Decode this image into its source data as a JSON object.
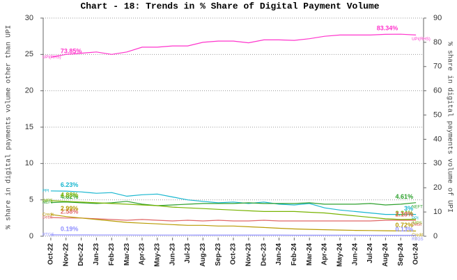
{
  "chart_data": {
    "type": "line",
    "title": "Chart - 18: Trends in % Share of Digital Payment Volume",
    "y_label": "% share in digital payments volume other than UPI",
    "y2_label": "% share in digital payments volume of UPI",
    "categories": [
      "Oct-22",
      "Nov-22",
      "Dec-22",
      "Jan-23",
      "Feb-23",
      "Mar-23",
      "Apr-23",
      "May-23",
      "Jun-23",
      "Jul-23",
      "Aug-23",
      "Sep-23",
      "Oct-23",
      "Nov-23",
      "Dec-23",
      "Jan-24",
      "Feb-24",
      "Mar-24",
      "Apr-24",
      "May-24",
      "Jun-24",
      "Jul-24",
      "Aug-24",
      "Sep-24",
      "Oct-24"
    ],
    "ylim": [
      0,
      30
    ],
    "yticks": [
      0,
      5,
      10,
      15,
      20,
      25,
      30
    ],
    "y2lim": [
      0,
      90
    ],
    "y2ticks": [
      0,
      10,
      20,
      30,
      40,
      50,
      60,
      70,
      80,
      90
    ],
    "grid": true,
    "series": [
      {
        "name": "UPI(RHS)",
        "color": "#ff33cc",
        "axis": "y2",
        "values": [
          73.85,
          75,
          75.5,
          76,
          75,
          76,
          78,
          78,
          78.5,
          78.5,
          80,
          80.5,
          80.5,
          79.8,
          81,
          81,
          80.8,
          81.5,
          82.5,
          83,
          83,
          83,
          83.3,
          83.34,
          83
        ],
        "value_labels": [
          "73.85%",
          null,
          null,
          null,
          null,
          null,
          null,
          null,
          null,
          null,
          null,
          null,
          null,
          null,
          null,
          null,
          null,
          null,
          null,
          null,
          null,
          null,
          null,
          "83.34%",
          null
        ]
      },
      {
        "name": "PPI",
        "color": "#17b6cf",
        "values": [
          6.23,
          6.2,
          6.1,
          5.9,
          6.0,
          5.5,
          5.7,
          5.8,
          5.4,
          5.0,
          4.8,
          4.6,
          4.7,
          4.5,
          4.7,
          4.4,
          4.3,
          4.5,
          3.9,
          3.6,
          3.4,
          3.2,
          3.0,
          3.0,
          3
        ],
        "value_labels": [
          "6.23%",
          null,
          null,
          null,
          null,
          null,
          null,
          null,
          null,
          null,
          null,
          null,
          null,
          null,
          null,
          null,
          null,
          null,
          null,
          null,
          null,
          null,
          null,
          null,
          "3%"
        ]
      },
      {
        "name": "NEFT",
        "color": "#2ca02c",
        "values": [
          4.62,
          4.7,
          4.6,
          4.5,
          4.6,
          4.8,
          4.4,
          4.2,
          4.3,
          4.4,
          4.5,
          4.5,
          4.5,
          4.6,
          4.5,
          4.5,
          4.5,
          4.6,
          4.4,
          4.4,
          4.4,
          4.5,
          4.3,
          4.4,
          4.61
        ],
        "value_labels": [
          "4.62%",
          null,
          null,
          null,
          null,
          null,
          null,
          null,
          null,
          null,
          null,
          null,
          null,
          null,
          null,
          null,
          null,
          null,
          null,
          null,
          null,
          null,
          null,
          null,
          "4.61%"
        ]
      },
      {
        "name": "IMPS",
        "color": "#77b300",
        "values": [
          4.88,
          4.8,
          4.7,
          4.6,
          4.5,
          4.4,
          4.3,
          4.2,
          4.0,
          3.9,
          3.8,
          3.7,
          3.6,
          3.5,
          3.4,
          3.4,
          3.4,
          3.3,
          3.2,
          3.0,
          2.8,
          2.6,
          2.4,
          2.3,
          2.34
        ],
        "value_labels": [
          "4.88%",
          null,
          null,
          null,
          null,
          null,
          null,
          null,
          null,
          null,
          null,
          null,
          null,
          null,
          null,
          null,
          null,
          null,
          null,
          null,
          null,
          null,
          null,
          null,
          "2.34%"
        ]
      },
      {
        "name": "Debit",
        "color": "#e06666",
        "values": [
          2.58,
          2.5,
          2.5,
          2.4,
          2.3,
          2.2,
          2.3,
          2.2,
          2.1,
          2.2,
          2.1,
          2.2,
          2.1,
          2.1,
          2.2,
          2.1,
          2.1,
          2.1,
          2.1,
          2.1,
          2.1,
          2.1,
          2.2,
          2.2,
          2.18
        ],
        "value_labels": [
          "2.58%",
          null,
          null,
          null,
          null,
          null,
          null,
          null,
          null,
          null,
          null,
          null,
          null,
          null,
          null,
          null,
          null,
          null,
          null,
          null,
          null,
          null,
          null,
          null,
          "2.18%"
        ]
      },
      {
        "name": "Credit",
        "color": "#b89a00",
        "values": [
          2.99,
          2.7,
          2.5,
          2.3,
          2.1,
          1.9,
          1.8,
          1.7,
          1.6,
          1.5,
          1.5,
          1.4,
          1.4,
          1.3,
          1.2,
          1.1,
          1.0,
          0.95,
          0.9,
          0.85,
          0.8,
          0.78,
          0.75,
          0.73,
          0.72
        ],
        "value_labels": [
          "2.99%",
          null,
          null,
          null,
          null,
          null,
          null,
          null,
          null,
          null,
          null,
          null,
          null,
          null,
          null,
          null,
          null,
          null,
          null,
          null,
          null,
          null,
          null,
          null,
          "0.72%"
        ]
      },
      {
        "name": "RTGS",
        "color": "#8f8fff",
        "values": [
          0.19,
          0.18,
          0.18,
          0.17,
          0.17,
          0.17,
          0.16,
          0.16,
          0.16,
          0.16,
          0.15,
          0.15,
          0.15,
          0.15,
          0.15,
          0.15,
          0.14,
          0.14,
          0.14,
          0.14,
          0.14,
          0.13,
          0.13,
          0.13,
          0.13
        ],
        "value_labels": [
          "0.19%",
          null,
          null,
          null,
          null,
          null,
          null,
          null,
          null,
          null,
          null,
          null,
          null,
          null,
          null,
          null,
          null,
          null,
          null,
          null,
          null,
          null,
          null,
          null,
          "0.13%"
        ]
      }
    ]
  }
}
